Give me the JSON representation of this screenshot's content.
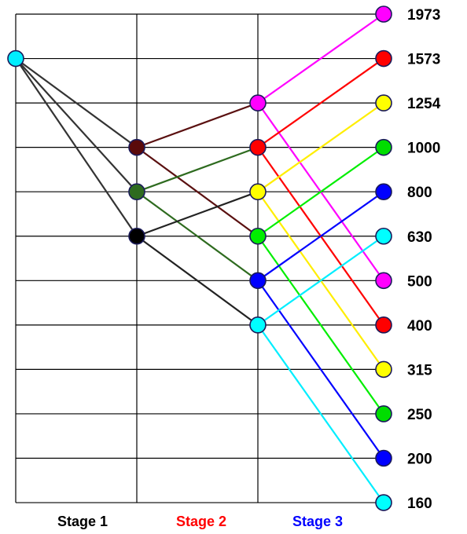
{
  "speeds": [
    "1973",
    "1573",
    "1254",
    "1000",
    "800",
    "630",
    "500",
    "400",
    "315",
    "250",
    "200",
    "160"
  ],
  "stages": [
    {
      "label": "Stage 1",
      "color": "#000000"
    },
    {
      "label": "Stage 2",
      "color": "#ff0000"
    },
    {
      "label": "Stage 3",
      "color": "#0000ff"
    }
  ],
  "grid_color": "#000000",
  "connections": {
    "input_to_stage1": [
      {
        "to_speed": "1000",
        "color": "#333333"
      },
      {
        "to_speed": "800",
        "color": "#333333"
      },
      {
        "to_speed": "630",
        "color": "#333333"
      }
    ],
    "stage1_to_stage2": [
      {
        "from_speed": "1000",
        "to_speed": "1254",
        "color": "#5a1010"
      },
      {
        "from_speed": "1000",
        "to_speed": "630",
        "color": "#5a1010"
      },
      {
        "from_speed": "800",
        "to_speed": "1000",
        "color": "#2e6b1f"
      },
      {
        "from_speed": "800",
        "to_speed": "500",
        "color": "#2e6b1f"
      },
      {
        "from_speed": "630",
        "to_speed": "800",
        "color": "#222222"
      },
      {
        "from_speed": "630",
        "to_speed": "400",
        "color": "#222222"
      }
    ],
    "stage2_to_stage3": [
      {
        "from_speed": "1254",
        "to_speed": "1973",
        "color": "#ff00ff"
      },
      {
        "from_speed": "1254",
        "to_speed": "500",
        "color": "#ff00ff"
      },
      {
        "from_speed": "1000",
        "to_speed": "1573",
        "color": "#ff0000"
      },
      {
        "from_speed": "1000",
        "to_speed": "400",
        "color": "#ff0000"
      },
      {
        "from_speed": "800",
        "to_speed": "1254",
        "color": "#ffee00"
      },
      {
        "from_speed": "800",
        "to_speed": "315",
        "color": "#ffee00"
      },
      {
        "from_speed": "630",
        "to_speed": "1000",
        "color": "#00ee00"
      },
      {
        "from_speed": "630",
        "to_speed": "250",
        "color": "#00ee00"
      },
      {
        "from_speed": "500",
        "to_speed": "800",
        "color": "#0000ff"
      },
      {
        "from_speed": "500",
        "to_speed": "200",
        "color": "#0000ff"
      },
      {
        "from_speed": "400",
        "to_speed": "630",
        "color": "#00eeff"
      },
      {
        "from_speed": "400",
        "to_speed": "160",
        "color": "#00eeff"
      }
    ]
  },
  "nodes": {
    "input": [
      {
        "speed": "1573",
        "color": "#00eeff"
      }
    ],
    "stage1": [
      {
        "speed": "1000",
        "color": "#5a0a0a"
      },
      {
        "speed": "800",
        "color": "#2e6b1f"
      },
      {
        "speed": "630",
        "color": "#000000"
      }
    ],
    "stage2": [
      {
        "speed": "1254",
        "color": "#ff00ff"
      },
      {
        "speed": "1000",
        "color": "#ff0000"
      },
      {
        "speed": "800",
        "color": "#ffff00"
      },
      {
        "speed": "630",
        "color": "#00ee00"
      },
      {
        "speed": "500",
        "color": "#0000ff"
      },
      {
        "speed": "400",
        "color": "#00ffff"
      }
    ],
    "output": [
      {
        "speed": "1973",
        "color": "#ff00ff"
      },
      {
        "speed": "1573",
        "color": "#ff0000"
      },
      {
        "speed": "1254",
        "color": "#ffff00"
      },
      {
        "speed": "1000",
        "color": "#00dd00"
      },
      {
        "speed": "800",
        "color": "#0000ff"
      },
      {
        "speed": "630",
        "color": "#00ffff"
      },
      {
        "speed": "500",
        "color": "#ff00ff"
      },
      {
        "speed": "400",
        "color": "#ff0000"
      },
      {
        "speed": "315",
        "color": "#ffff00"
      },
      {
        "speed": "250",
        "color": "#00dd00"
      },
      {
        "speed": "200",
        "color": "#0000ff"
      },
      {
        "speed": "160",
        "color": "#00ffff"
      }
    ]
  }
}
